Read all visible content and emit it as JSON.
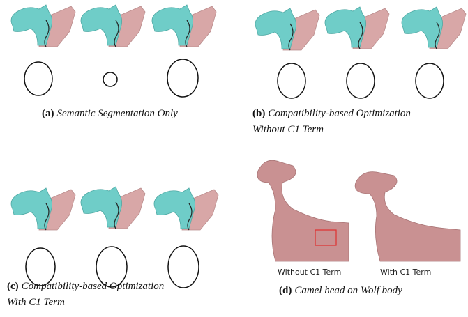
{
  "panels": [
    {
      "label": "(a)",
      "caption": [
        "Semantic Segmentation Only"
      ]
    },
    {
      "label": "(b)",
      "caption": [
        "Compatibility-based Optimization",
        "Without C1 Term"
      ]
    },
    {
      "label": "(c)",
      "caption": [
        "Compatibility-based Optimization",
        "With C1 Term"
      ]
    },
    {
      "label": "(d)",
      "caption": [
        "Camel head on Wolf body"
      ]
    }
  ],
  "panel_d_labels": [
    "Without C1 Term",
    "With C1 Term"
  ]
}
